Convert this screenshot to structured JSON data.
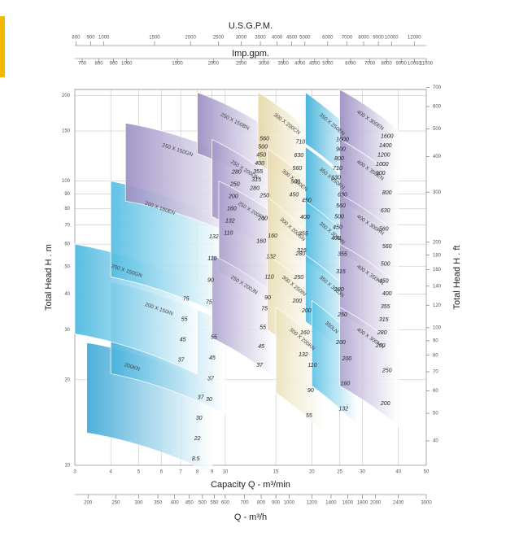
{
  "top_axis": {
    "title": "U.S.G.P.M.",
    "ticks": [
      800,
      900,
      1000,
      1500,
      2000,
      2500,
      3000,
      3500,
      4000,
      4500,
      5000,
      6000,
      7000,
      8000,
      9000,
      10000,
      12000
    ]
  },
  "imp_axis": {
    "title": "Imp.gpm.",
    "ticks": [
      700,
      800,
      900,
      1000,
      1500,
      2000,
      2500,
      3000,
      3500,
      4000,
      4500,
      5000,
      6000,
      7000,
      8000,
      9000,
      10000,
      11000
    ]
  },
  "left_axis": {
    "title": "Total Head H . m",
    "lim": [
      10,
      210
    ],
    "ticks": [
      10,
      20,
      30,
      40,
      50,
      60,
      70,
      80,
      90,
      100,
      150,
      200
    ]
  },
  "right_axis": {
    "title": "Total Head H . ft",
    "ticks": [
      40,
      50,
      60,
      70,
      80,
      90,
      100,
      120,
      140,
      160,
      180,
      200,
      300,
      400,
      500,
      600,
      700
    ]
  },
  "bottom_axis": {
    "title": "Capacity Q - m³/min",
    "lim": [
      3,
      50
    ],
    "ticks": [
      3,
      4,
      5,
      6,
      7,
      8,
      9,
      10,
      15,
      20,
      25,
      30,
      40,
      50
    ]
  },
  "m3h_axis": {
    "title": "Q - m³/h",
    "ticks": [
      200,
      250,
      300,
      350,
      400,
      450,
      500,
      550,
      600,
      700,
      800,
      900,
      1000,
      1200,
      1400,
      1600,
      1800,
      2000,
      2400,
      3000
    ]
  },
  "tiles": [
    {
      "name": "200KN",
      "q": [
        3.3,
        9
      ],
      "h": [
        13,
        27
      ],
      "color": "#3fa9d6",
      "diameters": [
        "37",
        "30",
        "22",
        "8.5"
      ]
    },
    {
      "name": "200 X 150IN",
      "q": [
        4,
        10
      ],
      "h": [
        21,
        44
      ],
      "color": "#45b2dc",
      "diameters": [
        "55",
        "45",
        "37",
        "30"
      ]
    },
    {
      "name": "200 X 150GN",
      "q": [
        3,
        8
      ],
      "h": [
        29,
        60
      ],
      "color": "#4ab8e0",
      "diameters": [
        "75",
        "55",
        "45",
        "37"
      ]
    },
    {
      "name": "200 X 180EN",
      "q": [
        4,
        10
      ],
      "h": [
        46,
        100
      ],
      "color": "#52bde2",
      "diameters": [
        "132",
        "110",
        "90",
        "75"
      ]
    },
    {
      "name": "250 X 150GN",
      "q": [
        4.5,
        12
      ],
      "h": [
        85,
        160
      ],
      "color": "#9d90c4",
      "diameters": [
        "280",
        "250",
        "200",
        "160",
        "132",
        "110"
      ]
    },
    {
      "name": "250 X 150BN",
      "q": [
        8,
        15
      ],
      "h": [
        125,
        205
      ],
      "color": "#9a8dc2",
      "diameters": [
        "560",
        "500",
        "450",
        "400",
        "355",
        "315",
        "280"
      ]
    },
    {
      "name": "250 X 200DN",
      "q": [
        9,
        15
      ],
      "h": [
        75,
        140
      ],
      "color": "#a497c8",
      "diameters": [
        "250",
        "200",
        "160"
      ]
    },
    {
      "name": "250 X 200FN",
      "q": [
        9.5,
        16
      ],
      "h": [
        48,
        100
      ],
      "color": "#aa9ecb",
      "diameters": [
        "160",
        "132",
        "110",
        "90"
      ]
    },
    {
      "name": "250 X 200JN",
      "q": [
        9,
        15
      ],
      "h": [
        28,
        55
      ],
      "color": "#b0a5cf",
      "diameters": [
        "75",
        "55",
        "45",
        "37"
      ]
    },
    {
      "name": "300 X 200CN",
      "q": [
        13,
        20
      ],
      "h": [
        115,
        205
      ],
      "color": "#e6d7a6",
      "diameters": [
        "710",
        "630",
        "560",
        "500",
        "450"
      ]
    },
    {
      "name": "300 X 200EN",
      "q": [
        14,
        21
      ],
      "h": [
        72,
        130
      ],
      "color": "#e8dbae",
      "diameters": [
        "450",
        "400",
        "355",
        "315"
      ]
    },
    {
      "name": "300 X 200GN",
      "q": [
        14,
        20
      ],
      "h": [
        46,
        88
      ],
      "color": "#eadfb4",
      "diameters": [
        "280",
        "250",
        "200"
      ]
    },
    {
      "name": "300 X 250IN",
      "q": [
        14,
        21
      ],
      "h": [
        30,
        55
      ],
      "color": "#ebe0b8",
      "diameters": [
        "200",
        "160",
        "132"
      ]
    },
    {
      "name": "300 X 200KN",
      "q": [
        15,
        22
      ],
      "h": [
        18,
        36
      ],
      "color": "#ece2bc",
      "diameters": [
        "110",
        "90",
        "55"
      ]
    },
    {
      "name": "350 X 250EN",
      "q": [
        19,
        28
      ],
      "h": [
        135,
        205
      ],
      "color": "#3db0da",
      "diameters": [
        "1000",
        "900",
        "800",
        "710",
        "630"
      ]
    },
    {
      "name": "350 X 250FN",
      "q": [
        19,
        28
      ],
      "h": [
        82,
        132
      ],
      "color": "#45b5dd",
      "diameters": [
        "630",
        "560",
        "500",
        "450",
        "400"
      ]
    },
    {
      "name": "350 X 300HN",
      "q": [
        19,
        28
      ],
      "h": [
        52,
        85
      ],
      "color": "#4dbae0",
      "diameters": [
        "355",
        "315",
        "280"
      ]
    },
    {
      "name": "350 X 300JN",
      "q": [
        19,
        28
      ],
      "h": [
        32,
        55
      ],
      "color": "#55bfe2",
      "diameters": [
        "250",
        "200"
      ]
    },
    {
      "name": "350LN",
      "q": [
        20,
        29
      ],
      "h": [
        19,
        38
      ],
      "color": "#5cc3e4",
      "diameters": [
        "200",
        "160",
        "132"
      ]
    },
    {
      "name": "400 X 300EN",
      "q": [
        25,
        40
      ],
      "h": [
        140,
        210
      ],
      "color": "#9b8ec3",
      "diameters": [
        "1600",
        "1400",
        "1200",
        "1000",
        "900"
      ]
    },
    {
      "name": "400 X 350EN",
      "q": [
        25,
        40
      ],
      "h": [
        85,
        140
      ],
      "color": "#a194c6",
      "diameters": [
        "800",
        "630",
        "560"
      ]
    },
    {
      "name": "400 X 300HN",
      "q": [
        25,
        40
      ],
      "h": [
        56,
        90
      ],
      "color": "#a79bc9",
      "diameters": [
        "560",
        "500",
        "450"
      ]
    },
    {
      "name": "400 X 350KN",
      "q": [
        25,
        40
      ],
      "h": [
        34,
        60
      ],
      "color": "#ada1cd",
      "diameters": [
        "400",
        "355",
        "315",
        "280",
        "250"
      ]
    },
    {
      "name": "400 X 300MN",
      "q": [
        25,
        40
      ],
      "h": [
        19,
        36
      ],
      "color": "#b3a8d1",
      "diameters": [
        "250",
        "200"
      ]
    }
  ]
}
